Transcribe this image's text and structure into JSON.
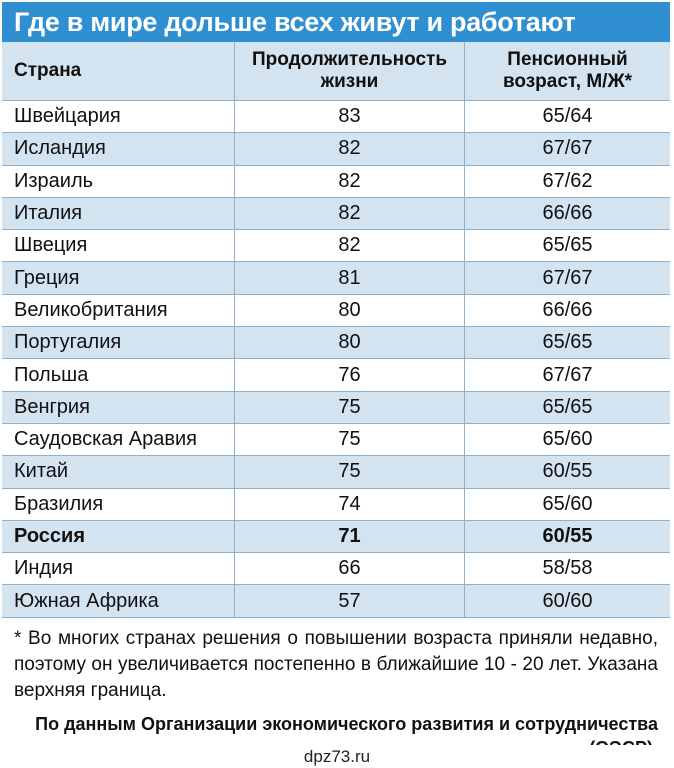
{
  "title": "Где в мире дольше всех живут и работают",
  "headers": {
    "country": "Страна",
    "life_line1": "Продолжительность",
    "life_line2": "жизни",
    "pension_line1": "Пенсионный",
    "pension_line2": "возраст, М/Ж*"
  },
  "rows": [
    {
      "country": "Швейцария",
      "life": "83",
      "pension": "65/64"
    },
    {
      "country": "Исландия",
      "life": "82",
      "pension": "67/67"
    },
    {
      "country": "Израиль",
      "life": "82",
      "pension": "67/62"
    },
    {
      "country": "Италия",
      "life": "82",
      "pension": "66/66"
    },
    {
      "country": "Швеция",
      "life": "82",
      "pension": "65/65"
    },
    {
      "country": "Греция",
      "life": "81",
      "pension": "67/67"
    },
    {
      "country": "Великобритания",
      "life": "80",
      "pension": "66/66"
    },
    {
      "country": "Португалия",
      "life": "80",
      "pension": "65/65"
    },
    {
      "country": "Польша",
      "life": "76",
      "pension": "67/67"
    },
    {
      "country": "Венгрия",
      "life": "75",
      "pension": "65/65"
    },
    {
      "country": "Саудовская Аравия",
      "life": "75",
      "pension": "65/60"
    },
    {
      "country": "Китай",
      "life": "75",
      "pension": "60/55"
    },
    {
      "country": "Бразилия",
      "life": "74",
      "pension": "65/60"
    },
    {
      "country": "Россия",
      "life": "71",
      "pension": "60/55"
    },
    {
      "country": "Индия",
      "life": "66",
      "pension": "58/58"
    },
    {
      "country": "Южная Африка",
      "life": "57",
      "pension": "60/60"
    }
  ],
  "highlight_country": "Россия",
  "footnote": "* Во многих странах решения о повышении возраста приняли недавно, поэтому он увеличивается постепенно в ближайшие 10 - 20 лет. Указана верхняя граница.",
  "source": "По данным Организации экономического развития и сотрудничества (ОЭСР).",
  "site": "dpz73.ru",
  "colors": {
    "title_bg": "#2f8fd0",
    "row_alt": "#d4e3f0",
    "border": "#8fb0cc"
  }
}
